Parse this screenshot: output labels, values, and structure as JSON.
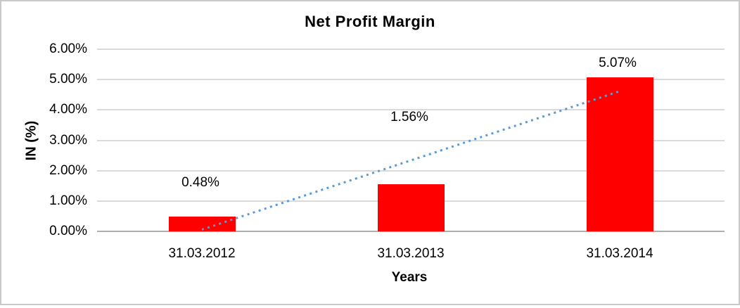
{
  "chart_data": {
    "type": "bar",
    "title": "Net Profit Margin",
    "xlabel": "Years",
    "ylabel": "IN (%)",
    "categories": [
      "31.03.2012",
      "31.03.2013",
      "31.03.2014"
    ],
    "values": [
      0.48,
      1.56,
      5.07
    ],
    "data_labels": [
      "0.48%",
      "1.56%",
      "5.07%"
    ],
    "y_ticks": [
      "6.00%",
      "5.00%",
      "4.00%",
      "3.00%",
      "2.00%",
      "1.00%",
      "0.00%"
    ],
    "ylim": [
      0,
      6
    ],
    "grid": true,
    "legend_position": "none",
    "bar_color": "#ff0000",
    "gridline_color": "#dadada",
    "axis_line_color": "#aeaeae",
    "trendline": {
      "style": "dotted",
      "color": "#5b9bd5",
      "start_value": 0.07,
      "end_value": 4.63
    }
  }
}
